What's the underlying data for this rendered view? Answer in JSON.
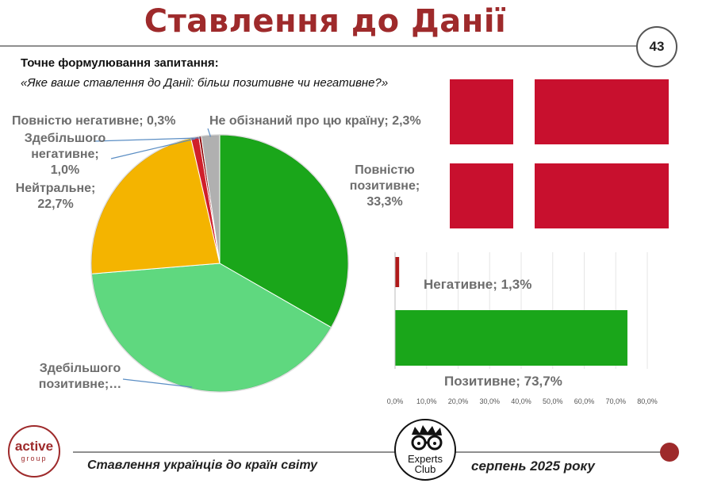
{
  "title": "Ставлення до Данії",
  "page_number": "43",
  "question_label": "Точне формулювання запитання:",
  "question_text": "«Яке ваше ставлення до Данії: більш позитивне чи негативне?»",
  "colors": {
    "brand": "#9e2a2b",
    "flag_red": "#c8102e",
    "green_dark": "#1aa61a",
    "green_light": "#5fd87f",
    "yellow": "#f4b400",
    "red": "#d01f2a",
    "grey": "#b0b0b0"
  },
  "chart_data": [
    {
      "type": "pie",
      "slices": [
        {
          "label": "Повністю позитивне",
          "value": 33.3,
          "display": "Повністю позитивне; 33,3%",
          "color": "#1aa61a"
        },
        {
          "label": "Здебільшого позитивне",
          "value": 40.4,
          "display": "Здебільшого позитивне;…",
          "color": "#5fd87f"
        },
        {
          "label": "Нейтральне",
          "value": 22.7,
          "display": "Нейтральне; 22,7%",
          "color": "#f4b400"
        },
        {
          "label": "Здебільшого негативне",
          "value": 1.0,
          "display": "Здебільшого негативне; 1,0%",
          "color": "#d01f2a"
        },
        {
          "label": "Повністю негативне",
          "value": 0.3,
          "display": "Повністю негативне; 0,3%",
          "color": "#8b0000"
        },
        {
          "label": "Не обізнаний про цю країну",
          "value": 2.3,
          "display": "Не обізнаний про цю країну; 2,3%",
          "color": "#b0b0b0"
        }
      ],
      "labels_text": {
        "full_pos": [
          "Повністю",
          "позитивне;",
          "33,3%"
        ],
        "mostly_pos": [
          "Здебільшого",
          "позитивне;…"
        ],
        "neutral": [
          "Нейтральне;",
          "22,7%"
        ],
        "mostly_neg": [
          "Здебільшого",
          "негативне; 1,0%"
        ],
        "full_neg": "Повністю негативне; 0,3%",
        "unaware": "Не обізнаний про цю країну; 2,3%"
      }
    },
    {
      "type": "bar",
      "orientation": "horizontal",
      "categories": [
        "Негативне",
        "Позитивне"
      ],
      "values": [
        1.3,
        73.7
      ],
      "labels": [
        "Негативне; 1,3%",
        "Позитивне; 73,7%"
      ],
      "colors": [
        "#b01a1a",
        "#1aa61a"
      ],
      "xlim": [
        0,
        80
      ],
      "ticks": [
        "0,0%",
        "10,0%",
        "20,0%",
        "30,0%",
        "40,0%",
        "50,0%",
        "60,0%",
        "70,0%",
        "80,0%"
      ],
      "grid": true
    }
  ],
  "footer": {
    "left": "Ставлення українців до країн світу",
    "right": "серпень 2025 року",
    "logo_active_main": "active",
    "logo_active_sub": "group",
    "logo_experts_1": "Experts",
    "logo_experts_2": "Club"
  }
}
